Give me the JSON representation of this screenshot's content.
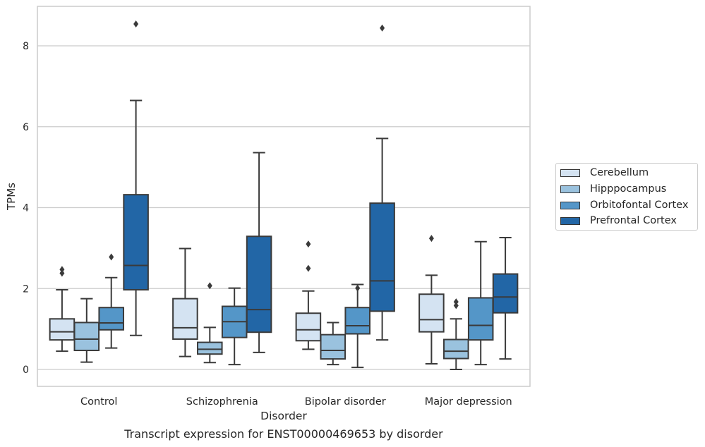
{
  "chart_data": {
    "type": "box",
    "title": "Transcript expression for ENST00000469653 by disorder",
    "xlabel": "Disorder",
    "ylabel": "TPMs",
    "ylim": [
      -0.42,
      9.0
    ],
    "yticks": [
      0,
      2,
      4,
      6,
      8
    ],
    "grid": "horizontal",
    "legend_position": "right",
    "categories": [
      "Control",
      "Schizophrenia",
      "Bipolar disorder",
      "Major depression"
    ],
    "series": [
      {
        "name": "Cerebellum",
        "color": "#d4e3f2",
        "boxes": [
          {
            "whislo": 0.45,
            "q1": 0.73,
            "med": 0.93,
            "q3": 1.25,
            "whishi": 1.97,
            "fliers": [
              2.38,
              2.47
            ]
          },
          {
            "whislo": 0.32,
            "q1": 0.75,
            "med": 1.03,
            "q3": 1.75,
            "whishi": 2.99,
            "fliers": []
          },
          {
            "whislo": 0.5,
            "q1": 0.71,
            "med": 0.98,
            "q3": 1.39,
            "whishi": 1.94,
            "fliers": [
              2.5,
              3.1
            ]
          },
          {
            "whislo": 0.14,
            "q1": 0.93,
            "med": 1.23,
            "q3": 1.86,
            "whishi": 2.33,
            "fliers": [
              3.24
            ]
          }
        ]
      },
      {
        "name": "Hipppocampus",
        "color": "#9ac2de",
        "boxes": [
          {
            "whislo": 0.18,
            "q1": 0.47,
            "med": 0.75,
            "q3": 1.16,
            "whishi": 1.75,
            "fliers": []
          },
          {
            "whislo": 0.17,
            "q1": 0.38,
            "med": 0.5,
            "q3": 0.67,
            "whishi": 1.04,
            "fliers": [
              2.07
            ]
          },
          {
            "whislo": 0.12,
            "q1": 0.26,
            "med": 0.47,
            "q3": 0.86,
            "whishi": 1.16,
            "fliers": []
          },
          {
            "whislo": 0.0,
            "q1": 0.27,
            "med": 0.45,
            "q3": 0.74,
            "whishi": 1.25,
            "fliers": [
              1.58,
              1.67
            ]
          }
        ]
      },
      {
        "name": "Orbitofontal Cortex",
        "color": "#5496c8",
        "boxes": [
          {
            "whislo": 0.53,
            "q1": 0.98,
            "med": 1.15,
            "q3": 1.53,
            "whishi": 2.27,
            "fliers": [
              2.78
            ]
          },
          {
            "whislo": 0.12,
            "q1": 0.79,
            "med": 1.18,
            "q3": 1.56,
            "whishi": 2.01,
            "fliers": []
          },
          {
            "whislo": 0.05,
            "q1": 0.88,
            "med": 1.08,
            "q3": 1.53,
            "whishi": 2.1,
            "fliers": [
              2.01
            ]
          },
          {
            "whislo": 0.12,
            "q1": 0.73,
            "med": 1.09,
            "q3": 1.77,
            "whishi": 3.16,
            "fliers": []
          }
        ]
      },
      {
        "name": "Prefrontal Cortex",
        "color": "#2266a6",
        "boxes": [
          {
            "whislo": 0.84,
            "q1": 1.97,
            "med": 2.57,
            "q3": 4.32,
            "whishi": 6.65,
            "fliers": [
              8.54
            ]
          },
          {
            "whislo": 0.42,
            "q1": 0.92,
            "med": 1.48,
            "q3": 3.29,
            "whishi": 5.36,
            "fliers": []
          },
          {
            "whislo": 0.73,
            "q1": 1.44,
            "med": 2.19,
            "q3": 4.11,
            "whishi": 5.71,
            "fliers": [
              8.44
            ]
          },
          {
            "whislo": 0.26,
            "q1": 1.4,
            "med": 1.79,
            "q3": 2.36,
            "whishi": 3.26,
            "fliers": []
          }
        ]
      }
    ]
  }
}
